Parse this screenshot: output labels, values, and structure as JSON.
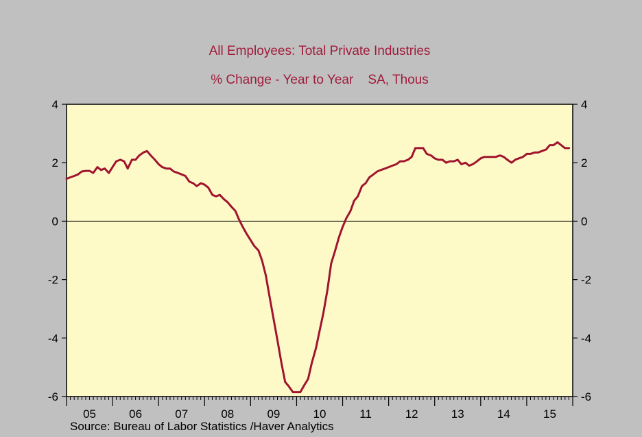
{
  "chart_data": {
    "type": "line",
    "title": "All Employees: Total Private Industries",
    "subtitle": "% Change - Year to Year    SA, Thous",
    "source": "Source:  Bureau of Labor Statistics /Haver Analytics",
    "x_range": [
      2004.0,
      2015.0
    ],
    "ylim": [
      -6,
      4
    ],
    "y_ticks": [
      4,
      2,
      0,
      -2,
      -4,
      -6
    ],
    "x_tick_labels": [
      {
        "label": "05",
        "x": 2005.0
      },
      {
        "label": "06",
        "x": 2006.0
      },
      {
        "label": "07",
        "x": 2007.0
      },
      {
        "label": "08",
        "x": 2008.0
      },
      {
        "label": "09",
        "x": 2009.0
      },
      {
        "label": "10",
        "x": 2010.0
      },
      {
        "label": "11",
        "x": 2011.0
      },
      {
        "label": "12",
        "x": 2012.0
      },
      {
        "label": "13",
        "x": 2013.0
      },
      {
        "label": "14",
        "x": 2014.0
      },
      {
        "label": "15",
        "x": 2015.0
      }
    ],
    "grid": false,
    "zero_line": true,
    "colors": {
      "series": "#a0142e",
      "plot_bg": "#fdfac8",
      "page_bg": "#c0c0c0",
      "title": "#a01c3c"
    },
    "series": [
      {
        "x": [
          2004.0,
          2004.08,
          2004.17,
          2004.25,
          2004.33,
          2004.42,
          2004.5,
          2004.58,
          2004.67,
          2004.75,
          2004.83,
          2004.92,
          2005.0,
          2005.08,
          2005.17,
          2005.25,
          2005.33,
          2005.42,
          2005.5,
          2005.58,
          2005.67,
          2005.75,
          2005.83,
          2005.92,
          2006.0,
          2006.08,
          2006.17,
          2006.25,
          2006.33,
          2006.42,
          2006.5,
          2006.58,
          2006.67,
          2006.75,
          2006.83,
          2006.92,
          2007.0,
          2007.08,
          2007.17,
          2007.25,
          2007.33,
          2007.42,
          2007.5,
          2007.58,
          2007.67,
          2007.75,
          2007.83,
          2007.92,
          2008.0,
          2008.08,
          2008.17,
          2008.25,
          2008.33,
          2008.42,
          2008.5,
          2008.58,
          2008.67,
          2008.75,
          2008.83,
          2008.92,
          2009.0,
          2009.08,
          2009.17,
          2009.25,
          2009.33,
          2009.42,
          2009.5,
          2009.58,
          2009.67,
          2009.75,
          2009.83,
          2009.92,
          2010.0,
          2010.08,
          2010.17,
          2010.25,
          2010.33,
          2010.42,
          2010.5,
          2010.58,
          2010.67,
          2010.75,
          2010.83,
          2010.92,
          2011.0,
          2011.08,
          2011.17,
          2011.25,
          2011.33,
          2011.42,
          2011.5,
          2011.58,
          2011.67,
          2011.75,
          2011.83,
          2011.92,
          2012.0,
          2012.08,
          2012.17,
          2012.25,
          2012.33,
          2012.42,
          2012.5,
          2012.58,
          2012.67,
          2012.75,
          2012.83,
          2012.92,
          2013.0,
          2013.08,
          2013.17,
          2013.25,
          2013.33,
          2013.42,
          2013.5,
          2013.58,
          2013.67,
          2013.75,
          2013.83,
          2013.92,
          2014.0,
          2014.08,
          2014.17,
          2014.25,
          2014.33,
          2014.42,
          2014.5,
          2014.58,
          2014.67,
          2014.75,
          2014.83,
          2014.92
        ],
        "y": [
          1.45,
          1.5,
          1.55,
          1.6,
          1.7,
          1.72,
          1.72,
          1.65,
          1.85,
          1.75,
          1.8,
          1.65,
          1.85,
          2.05,
          2.1,
          2.05,
          1.8,
          2.1,
          2.1,
          2.25,
          2.35,
          2.4,
          2.25,
          2.1,
          1.95,
          1.85,
          1.8,
          1.8,
          1.7,
          1.65,
          1.6,
          1.55,
          1.35,
          1.3,
          1.2,
          1.3,
          1.25,
          1.15,
          0.9,
          0.85,
          0.9,
          0.75,
          0.65,
          0.5,
          0.35,
          0.05,
          -0.2,
          -0.45,
          -0.65,
          -0.85,
          -1.0,
          -1.35,
          -1.85,
          -2.65,
          -3.35,
          -4.05,
          -4.85,
          -5.5,
          -5.65,
          -5.85,
          -5.85,
          -5.85,
          -5.6,
          -5.4,
          -4.85,
          -4.35,
          -3.75,
          -3.15,
          -2.35,
          -1.45,
          -1.05,
          -0.55,
          -0.2,
          0.1,
          0.35,
          0.7,
          0.85,
          1.2,
          1.3,
          1.5,
          1.6,
          1.7,
          1.75,
          1.8,
          1.85,
          1.9,
          1.95,
          2.05,
          2.05,
          2.1,
          2.2,
          2.5,
          2.5,
          2.5,
          2.3,
          2.25,
          2.15,
          2.1,
          2.1,
          2.0,
          2.05,
          2.05,
          2.1,
          1.95,
          2.0,
          1.9,
          1.95,
          2.05,
          2.15,
          2.2,
          2.2,
          2.2,
          2.2,
          2.25,
          2.2,
          2.1,
          2.0,
          2.1,
          2.15,
          2.2,
          2.3,
          2.3,
          2.35,
          2.35,
          2.4,
          2.45,
          2.6,
          2.6,
          2.7,
          2.6,
          2.5,
          2.5
        ]
      }
    ]
  }
}
